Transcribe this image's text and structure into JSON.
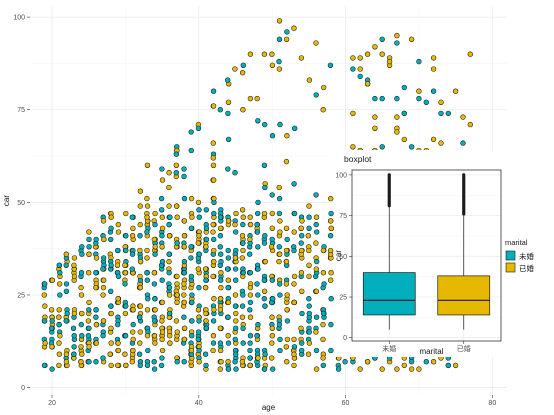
{
  "colors": {
    "未婚": "#00AFBB",
    "已婚": "#E7B800",
    "point_stroke": "#1a1a1a",
    "grid": "#ebebeb",
    "panel_border": "#333333"
  },
  "chart_data": [
    {
      "type": "scatter",
      "xlabel": "age",
      "ylabel": "car",
      "xlim": [
        17,
        82
      ],
      "ylim": [
        -2,
        103
      ],
      "x_ticks": [
        20,
        40,
        60,
        80
      ],
      "y_ticks": [
        0,
        25,
        50,
        75,
        100
      ],
      "grid": "on",
      "series": [
        {
          "name": "未婚",
          "color": "#00AFBB"
        },
        {
          "name": "已婚",
          "color": "#E7B800"
        }
      ],
      "age_range": [
        19,
        77
      ],
      "car_range": [
        5,
        100
      ],
      "note_density": "dense vertical columns of points at integer ages; most points between car 5 and 55"
    },
    {
      "type": "box",
      "title": "boxplot",
      "xlabel": "marital",
      "ylabel": "car",
      "ylim": [
        -2,
        103
      ],
      "y_ticks": [
        0,
        25,
        50,
        75,
        100
      ],
      "categories": [
        "未婚",
        "已婚"
      ],
      "boxes": [
        {
          "name": "未婚",
          "lower_whisker": 5,
          "q1": 14,
          "median": 23,
          "q3": 40,
          "upper_whisker": 80,
          "max": 100
        },
        {
          "name": "已婚",
          "lower_whisker": 5,
          "q1": 14,
          "median": 23,
          "q3": 38,
          "upper_whisker": 75,
          "max": 100
        }
      ]
    }
  ],
  "legend": {
    "title": "marital",
    "items": [
      "未婚",
      "已婚"
    ]
  }
}
